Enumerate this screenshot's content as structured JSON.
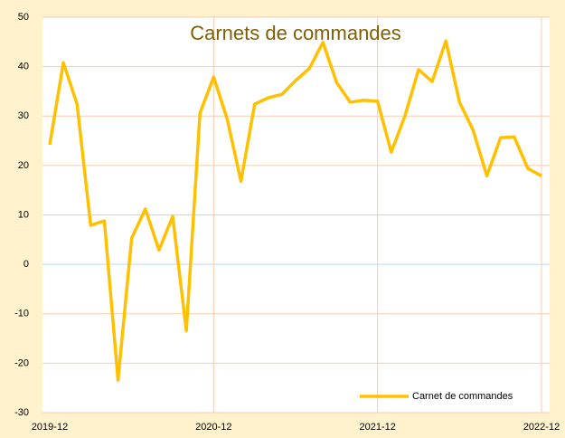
{
  "chart_data": {
    "type": "line",
    "title": "Carnets de commandes",
    "categories": [
      "2019-12",
      null,
      null,
      null,
      null,
      null,
      null,
      null,
      null,
      null,
      null,
      null,
      "2020-12",
      null,
      null,
      null,
      null,
      null,
      null,
      null,
      null,
      null,
      null,
      null,
      "2021-12",
      null,
      null,
      null,
      null,
      null,
      null,
      null,
      null,
      null,
      null,
      null,
      "2022-12"
    ],
    "series": [
      {
        "name": "Carnet de commandes",
        "color": "#ffc000",
        "values": [
          24.2,
          40.8,
          32.4,
          7.9,
          8.8,
          -23.4,
          5.3,
          11.2,
          2.9,
          9.7,
          -13.4,
          30.6,
          37.9,
          29.3,
          16.8,
          32.4,
          33.7,
          34.4,
          37.2,
          39.6,
          44.9,
          36.8,
          32.8,
          33.2,
          33.0,
          22.7,
          30.0,
          39.4,
          37.0,
          45.2,
          32.8,
          27.1,
          17.9,
          25.6,
          25.8,
          19.4,
          17.9
        ]
      }
    ],
    "ylim": [
      -30,
      50
    ],
    "yticks": [
      -30,
      -20,
      -10,
      0,
      10,
      20,
      30,
      40,
      50
    ],
    "grid": true,
    "legend": "bottom-right"
  }
}
